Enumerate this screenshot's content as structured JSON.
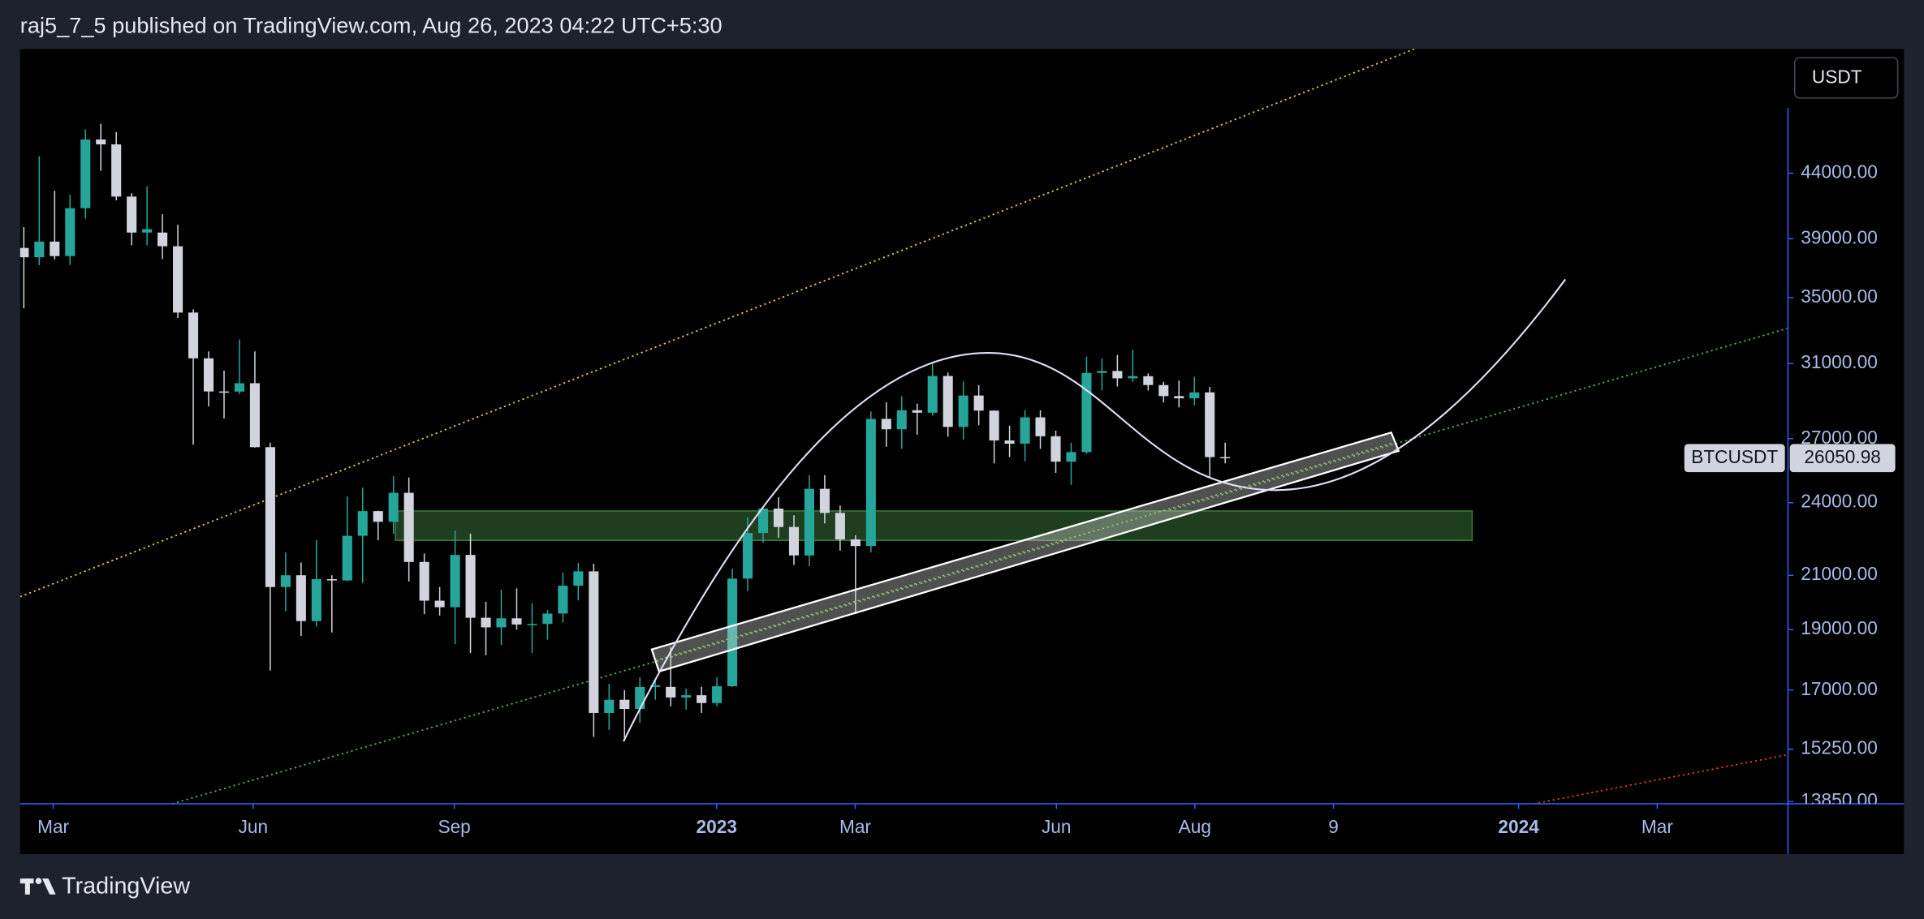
{
  "chart_data": {
    "type": "candlestick",
    "title": "raj5_7_5 published on TradingView.com, Aug 26, 2023 04:22 UTC+5:30",
    "symbol": "BTCUSDT",
    "currency": "USDT",
    "brand": "TradingView",
    "log_scale": true,
    "up_color": "#26a69a",
    "down_color": "#d1d4dc",
    "open": [
      38350,
      37700,
      38800,
      37780,
      41260,
      46820,
      46400,
      42150,
      39450,
      39450,
      38470,
      34050,
      31300,
      29450,
      29440,
      29900,
      26580,
      20550,
      21000,
      19300,
      20850,
      20800,
      22580,
      23630,
      23170,
      24440,
      21520,
      20040,
      19800,
      21800,
      19420,
      19080,
      19400,
      19180,
      19200,
      19570,
      20600,
      21150,
      16300,
      16700,
      16420,
      17100,
      17100,
      16770,
      16840,
      16600,
      17120,
      20870,
      22700,
      23740,
      22950,
      21780,
      24620,
      23550,
      22430,
      22160,
      28000,
      27470,
      28450,
      28320,
      30300,
      27590,
      29230,
      28430,
      26910,
      26750,
      28080,
      27120,
      25880,
      26340,
      30470,
      30580,
      30170,
      30290,
      29800,
      29200,
      29080,
      29400,
      26100
    ],
    "high": [
      39850,
      45400,
      42600,
      42300,
      47700,
      48190,
      47450,
      42420,
      42970,
      40800,
      40020,
      34250,
      31700,
      30600,
      32400,
      31700,
      26800,
      21900,
      21500,
      22400,
      21000,
      24280,
      24670,
      23650,
      25200,
      25140,
      21860,
      20550,
      22800,
      22670,
      20000,
      20450,
      20500,
      19950,
      19700,
      21100,
      21480,
      21450,
      17200,
      17000,
      17400,
      17300,
      18400,
      17050,
      17100,
      17400,
      21260,
      23370,
      23800,
      24240,
      23450,
      25250,
      25250,
      23880,
      22600,
      28390,
      28870,
      29190,
      28800,
      31000,
      30500,
      30000,
      29800,
      28450,
      27650,
      28450,
      28450,
      27400,
      26800,
      31400,
      31300,
      31500,
      31800,
      30450,
      29980,
      30050,
      30250,
      29700,
      26800
    ],
    "low": [
      34320,
      37150,
      37550,
      37170,
      40470,
      44200,
      41870,
      38540,
      38530,
      37580,
      33710,
      26700,
      28650,
      28020,
      29300,
      26560,
      17620,
      19650,
      18780,
      19100,
      18900,
      20770,
      20700,
      22400,
      22660,
      20760,
      19550,
      19500,
      18500,
      18200,
      18130,
      18470,
      19000,
      18200,
      18650,
      19250,
      20050,
      15600,
      15800,
      15480,
      16000,
      16700,
      16500,
      16400,
      16300,
      16500,
      17100,
      20400,
      22300,
      22500,
      21400,
      21350,
      23100,
      21970,
      19550,
      21900,
      26600,
      26500,
      27200,
      28170,
      27100,
      26950,
      27680,
      25800,
      26100,
      25900,
      26500,
      25350,
      24800,
      26250,
      29500,
      29720,
      29960,
      29500,
      28860,
      28600,
      28700,
      25150,
      25800
    ],
    "close": [
      37700,
      38800,
      37780,
      41260,
      46820,
      46400,
      42150,
      39450,
      39700,
      38470,
      34050,
      31300,
      29450,
      29440,
      29900,
      26580,
      20550,
      21000,
      19300,
      20850,
      20800,
      22580,
      23630,
      23170,
      24440,
      21520,
      20040,
      19800,
      21800,
      19420,
      19080,
      19400,
      19180,
      19200,
      19570,
      20600,
      21150,
      16300,
      16700,
      16420,
      17100,
      17150,
      16770,
      16840,
      16600,
      17120,
      20870,
      22700,
      23740,
      22950,
      21780,
      24620,
      23550,
      22430,
      22160,
      28000,
      27470,
      28450,
      28320,
      30300,
      27590,
      29230,
      28430,
      26910,
      26750,
      28080,
      27120,
      25880,
      26340,
      30470,
      30580,
      30170,
      30290,
      29800,
      29200,
      29080,
      29400,
      26100,
      26050.98
    ],
    "xlim": [
      -0.24,
      114.5
    ],
    "xticks": [
      {
        "value": 1.91,
        "label": "Mar"
      },
      {
        "value": 14.89,
        "label": "Jun"
      },
      {
        "value": 27.95,
        "label": "Sep"
      },
      {
        "value": 44.98,
        "label": "2023"
      },
      {
        "value": 53.98,
        "label": "Mar"
      },
      {
        "value": 67.04,
        "label": "Jun"
      },
      {
        "value": 76.03,
        "label": "Aug"
      },
      {
        "value": 85.03,
        "label": "9"
      },
      {
        "value": 97.05,
        "label": "2024"
      },
      {
        "value": 106.05,
        "label": "Mar"
      }
    ],
    "ylim": [
      13790,
      55300
    ],
    "yticks": [
      {
        "value": 44000,
        "label": "44000.00"
      },
      {
        "value": 39000,
        "label": "39000.00"
      },
      {
        "value": 35000,
        "label": "35000.00"
      },
      {
        "value": 31000,
        "label": "31000.00"
      },
      {
        "value": 27000,
        "label": "27000.00"
      },
      {
        "value": 24000,
        "label": "24000.00"
      },
      {
        "value": 21000,
        "label": "21000.00"
      },
      {
        "value": 19000,
        "label": "19000.00"
      },
      {
        "value": 17000,
        "label": "17000.00"
      },
      {
        "value": 15250,
        "label": "15250.00"
      },
      {
        "value": 13850,
        "label": "13850.00"
      }
    ]
  }
}
